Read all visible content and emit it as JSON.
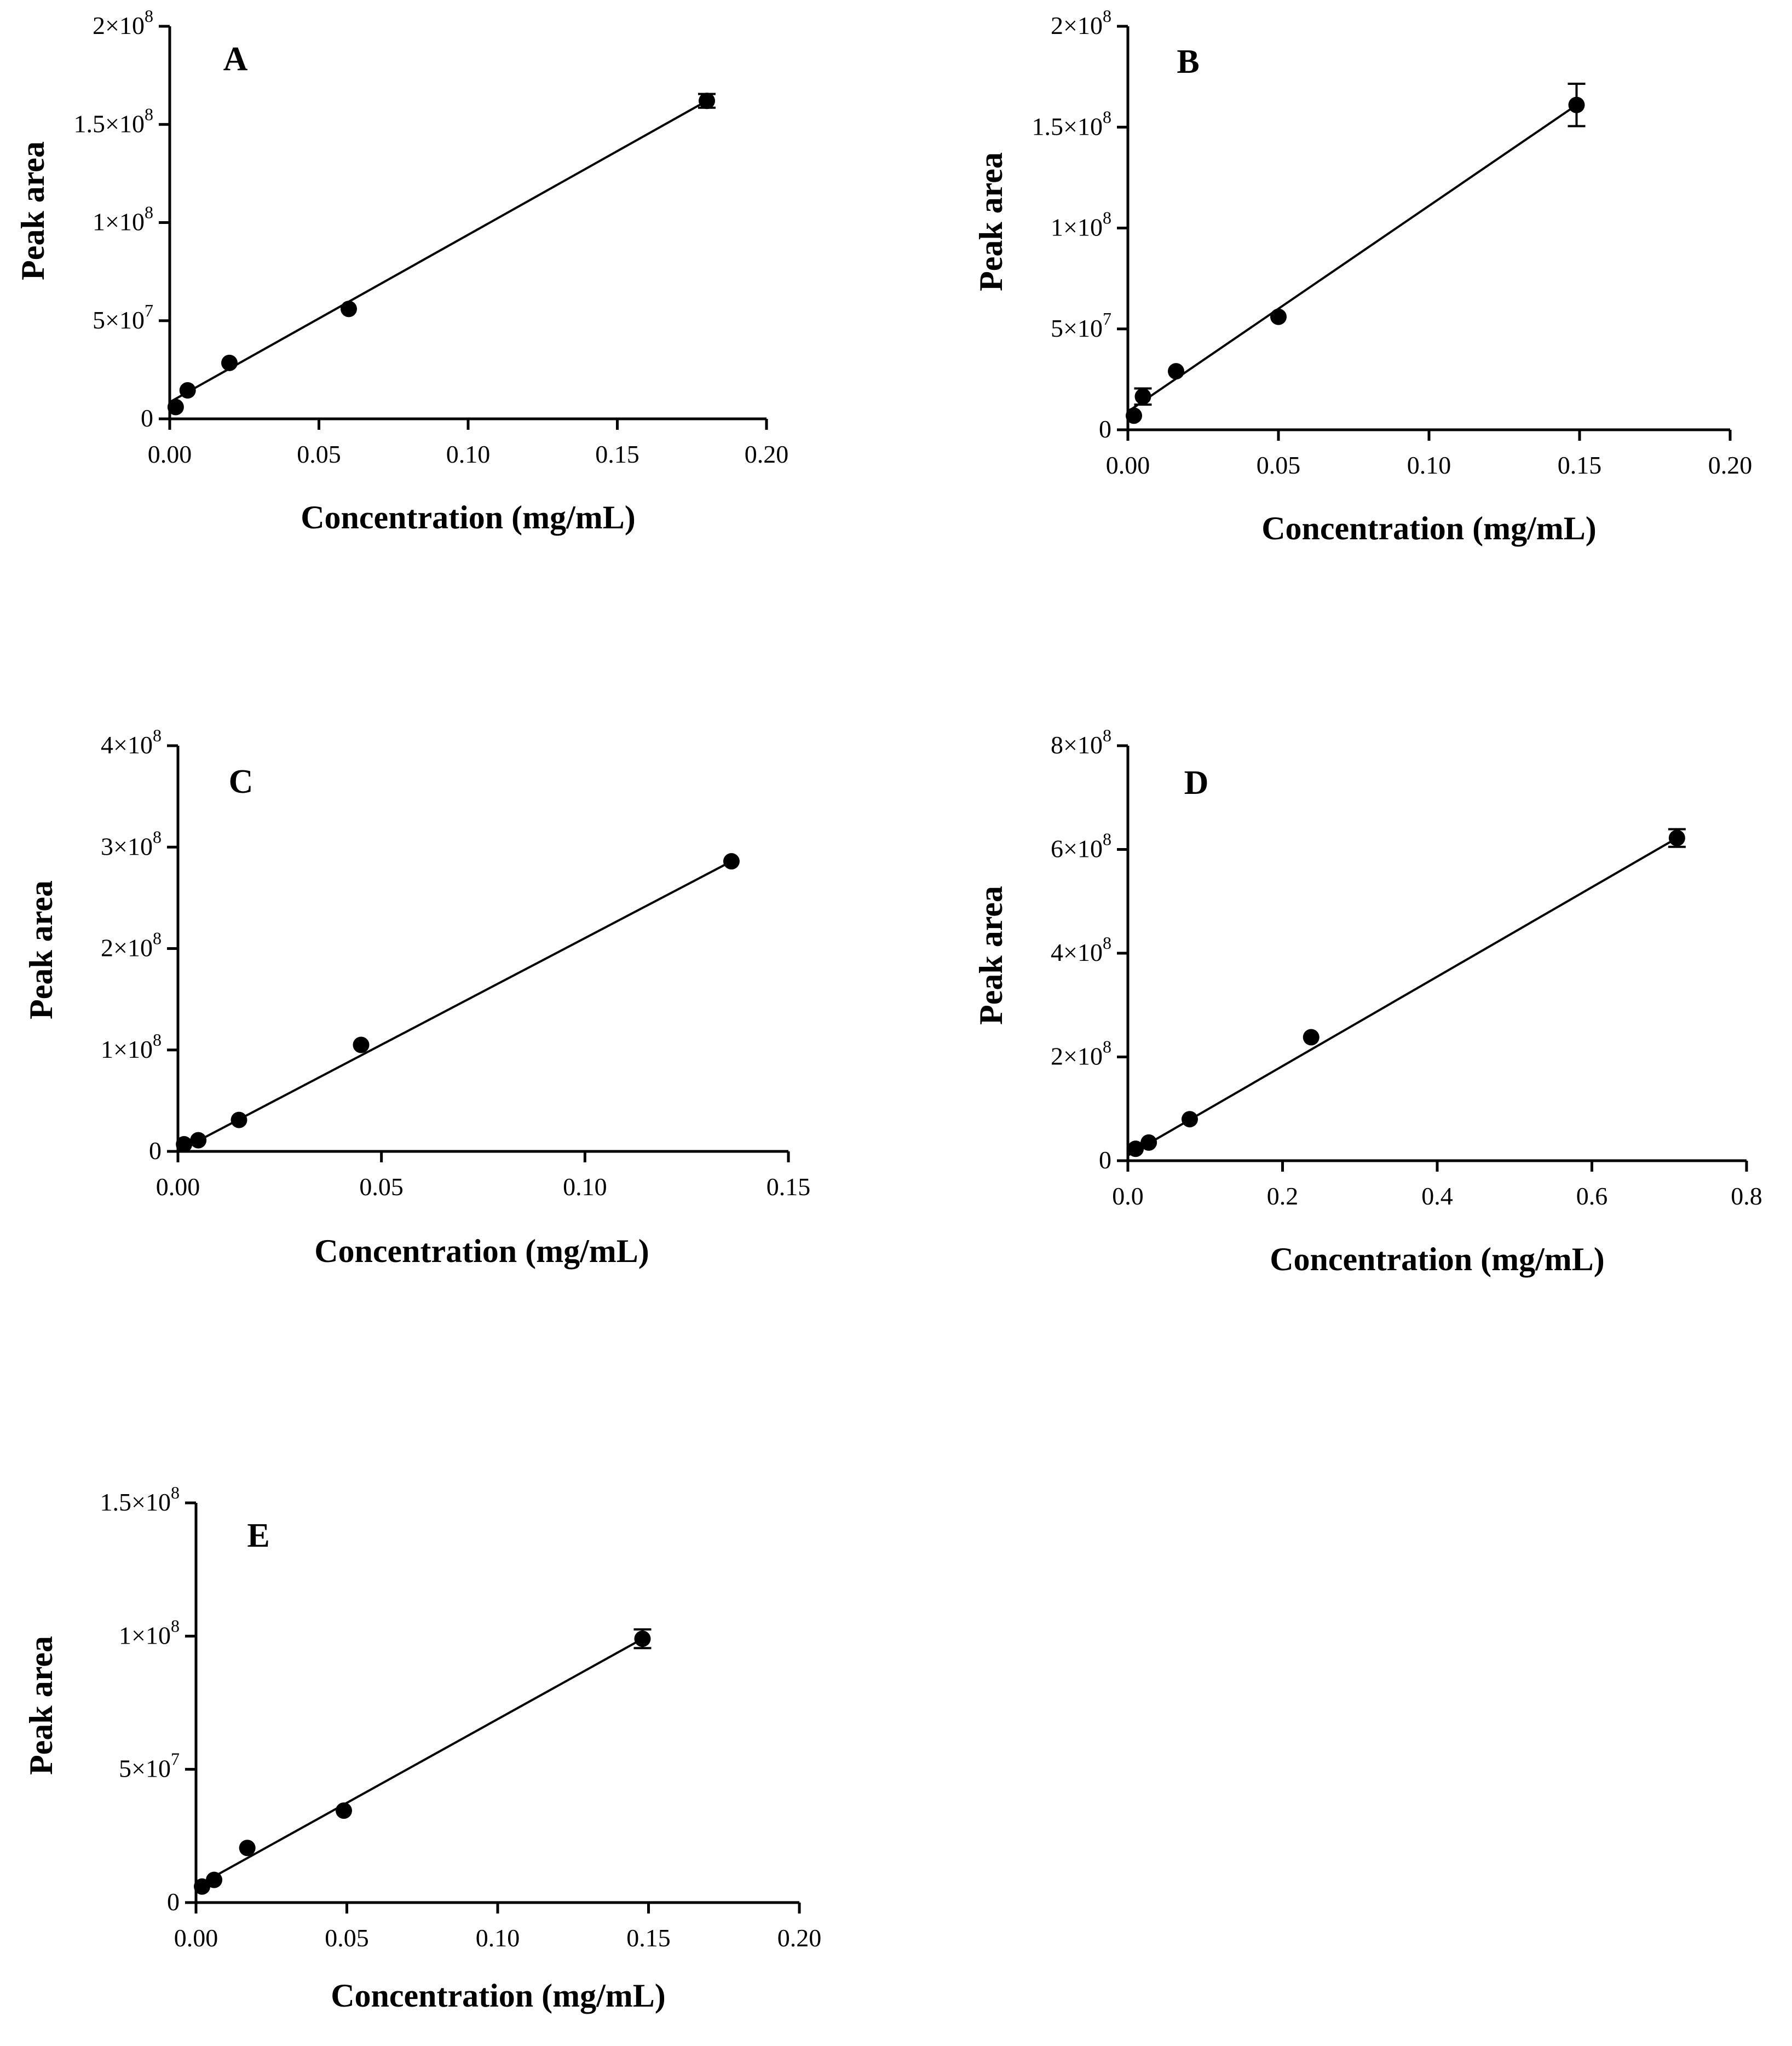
{
  "figure": {
    "panel_count": 5
  },
  "chart_data": [
    {
      "type": "scatter",
      "panel_label": "A",
      "xlabel": "Concentration (mg/mL)",
      "ylabel": "Peak area",
      "xlim": [
        0,
        0.2
      ],
      "ylim": [
        0,
        200000000
      ],
      "x_ticks": [
        0,
        0.05,
        0.1,
        0.15,
        0.2
      ],
      "x_tick_labels": [
        "0.00",
        "0.05",
        "0.10",
        "0.15",
        "0.20"
      ],
      "y_ticks": [
        0,
        50000000,
        100000000,
        150000000,
        200000000
      ],
      "y_tick_labels": [
        {
          "text": "0",
          "base": "0",
          "exp": ""
        },
        {
          "text": "5×10⁷",
          "base": "5×10",
          "exp": "7"
        },
        {
          "text": "1×10⁸",
          "base": "1×10",
          "exp": "8"
        },
        {
          "text": "1.5×10⁸",
          "base": "1.5×10",
          "exp": "8"
        },
        {
          "text": "2×10⁸",
          "base": "2×10",
          "exp": "8"
        }
      ],
      "points": [
        {
          "x": 0.002,
          "y": 6000000,
          "err": 0
        },
        {
          "x": 0.006,
          "y": 14500000,
          "err": 0
        },
        {
          "x": 0.02,
          "y": 28500000,
          "err": 0
        },
        {
          "x": 0.06,
          "y": 56000000,
          "err": 0
        },
        {
          "x": 0.18,
          "y": 162000000,
          "err": 3500000
        }
      ],
      "fit_line": {
        "x": [
          0,
          0.18
        ],
        "y": [
          8500000,
          162000000
        ]
      }
    },
    {
      "type": "scatter",
      "panel_label": "B",
      "xlabel": "Concentration (mg/mL)",
      "ylabel": "Peak area",
      "xlim": [
        0,
        0.2
      ],
      "ylim": [
        0,
        200000000
      ],
      "x_ticks": [
        0,
        0.05,
        0.1,
        0.15,
        0.2
      ],
      "x_tick_labels": [
        "0.00",
        "0.05",
        "0.10",
        "0.15",
        "0.20"
      ],
      "y_ticks": [
        0,
        50000000,
        100000000,
        150000000,
        200000000
      ],
      "y_tick_labels": [
        {
          "text": "0",
          "base": "0",
          "exp": ""
        },
        {
          "text": "5×10⁷",
          "base": "5×10",
          "exp": "7"
        },
        {
          "text": "1×10⁸",
          "base": "1×10",
          "exp": "8"
        },
        {
          "text": "1.5×10⁸",
          "base": "1.5×10",
          "exp": "8"
        },
        {
          "text": "2×10⁸",
          "base": "2×10",
          "exp": "8"
        }
      ],
      "points": [
        {
          "x": 0.002,
          "y": 7000000,
          "err": 0
        },
        {
          "x": 0.005,
          "y": 16500000,
          "err": 4000000
        },
        {
          "x": 0.016,
          "y": 29000000,
          "err": 0
        },
        {
          "x": 0.05,
          "y": 56000000,
          "err": 0
        },
        {
          "x": 0.149,
          "y": 161000000,
          "err": 10500000
        }
      ],
      "fit_line": {
        "x": [
          0,
          0.149
        ],
        "y": [
          9000000,
          161000000
        ]
      }
    },
    {
      "type": "scatter",
      "panel_label": "C",
      "xlabel": "Concentration (mg/mL)",
      "ylabel": "Peak area",
      "xlim": [
        0,
        0.15
      ],
      "ylim": [
        0,
        400000000
      ],
      "x_ticks": [
        0,
        0.05,
        0.1,
        0.15
      ],
      "x_tick_labels": [
        "0.00",
        "0.05",
        "0.10",
        "0.15"
      ],
      "y_ticks": [
        0,
        100000000,
        200000000,
        300000000,
        400000000
      ],
      "y_tick_labels": [
        {
          "text": "0",
          "base": "0",
          "exp": ""
        },
        {
          "text": "1×10⁸",
          "base": "1×10",
          "exp": "8"
        },
        {
          "text": "2×10⁸",
          "base": "2×10",
          "exp": "8"
        },
        {
          "text": "3×10⁸",
          "base": "3×10",
          "exp": "8"
        },
        {
          "text": "4×10⁸",
          "base": "4×10",
          "exp": "8"
        }
      ],
      "points": [
        {
          "x": 0.0015,
          "y": 7000000,
          "err": 0
        },
        {
          "x": 0.005,
          "y": 11000000,
          "err": 0
        },
        {
          "x": 0.015,
          "y": 31000000,
          "err": 0
        },
        {
          "x": 0.045,
          "y": 105000000,
          "err": 0
        },
        {
          "x": 0.136,
          "y": 286000000,
          "err": 0
        }
      ],
      "fit_line": {
        "x": [
          0,
          0.136
        ],
        "y": [
          0,
          286000000
        ]
      }
    },
    {
      "type": "scatter",
      "panel_label": "D",
      "xlabel": "Concentration (mg/mL)",
      "ylabel": "Peak area",
      "xlim": [
        0,
        0.8
      ],
      "ylim": [
        0,
        800000000
      ],
      "x_ticks": [
        0,
        0.2,
        0.4,
        0.6,
        0.8
      ],
      "x_tick_labels": [
        "0.0",
        "0.2",
        "0.4",
        "0.6",
        "0.8"
      ],
      "y_ticks": [
        0,
        200000000,
        400000000,
        600000000,
        800000000
      ],
      "y_tick_labels": [
        {
          "text": "0",
          "base": "0",
          "exp": ""
        },
        {
          "text": "2×10⁸",
          "base": "2×10",
          "exp": "8"
        },
        {
          "text": "4×10⁸",
          "base": "4×10",
          "exp": "8"
        },
        {
          "text": "6×10⁸",
          "base": "6×10",
          "exp": "8"
        },
        {
          "text": "8×10⁸",
          "base": "8×10",
          "exp": "8"
        }
      ],
      "points": [
        {
          "x": 0.01,
          "y": 23000000,
          "err": 0
        },
        {
          "x": 0.027,
          "y": 35000000,
          "err": 0
        },
        {
          "x": 0.08,
          "y": 80000000,
          "err": 0
        },
        {
          "x": 0.237,
          "y": 238000000,
          "err": 0
        },
        {
          "x": 0.71,
          "y": 622000000,
          "err": 17000000
        }
      ],
      "fit_line": {
        "x": [
          0,
          0.71
        ],
        "y": [
          10000000,
          622000000
        ]
      }
    },
    {
      "type": "scatter",
      "panel_label": "E",
      "xlabel": "Concentration (mg/mL)",
      "ylabel": "Peak area",
      "xlim": [
        0,
        0.2
      ],
      "ylim": [
        0,
        150000000
      ],
      "x_ticks": [
        0,
        0.05,
        0.1,
        0.15,
        0.2
      ],
      "x_tick_labels": [
        "0.00",
        "0.05",
        "0.10",
        "0.15",
        "0.20"
      ],
      "y_ticks": [
        0,
        50000000,
        100000000,
        150000000
      ],
      "y_tick_labels": [
        {
          "text": "0",
          "base": "0",
          "exp": ""
        },
        {
          "text": "5×10⁷",
          "base": "5×10",
          "exp": "7"
        },
        {
          "text": "1×10⁸",
          "base": "1×10",
          "exp": "8"
        },
        {
          "text": "1.5×10⁸",
          "base": "1.5×10",
          "exp": "8"
        }
      ],
      "points": [
        {
          "x": 0.002,
          "y": 6000000,
          "err": 0
        },
        {
          "x": 0.006,
          "y": 8500000,
          "err": 0
        },
        {
          "x": 0.017,
          "y": 20500000,
          "err": 0
        },
        {
          "x": 0.049,
          "y": 34500000,
          "err": 0
        },
        {
          "x": 0.148,
          "y": 99000000,
          "err": 3500000
        }
      ],
      "fit_line": {
        "x": [
          0,
          0.148
        ],
        "y": [
          6000000,
          99000000
        ]
      }
    }
  ]
}
